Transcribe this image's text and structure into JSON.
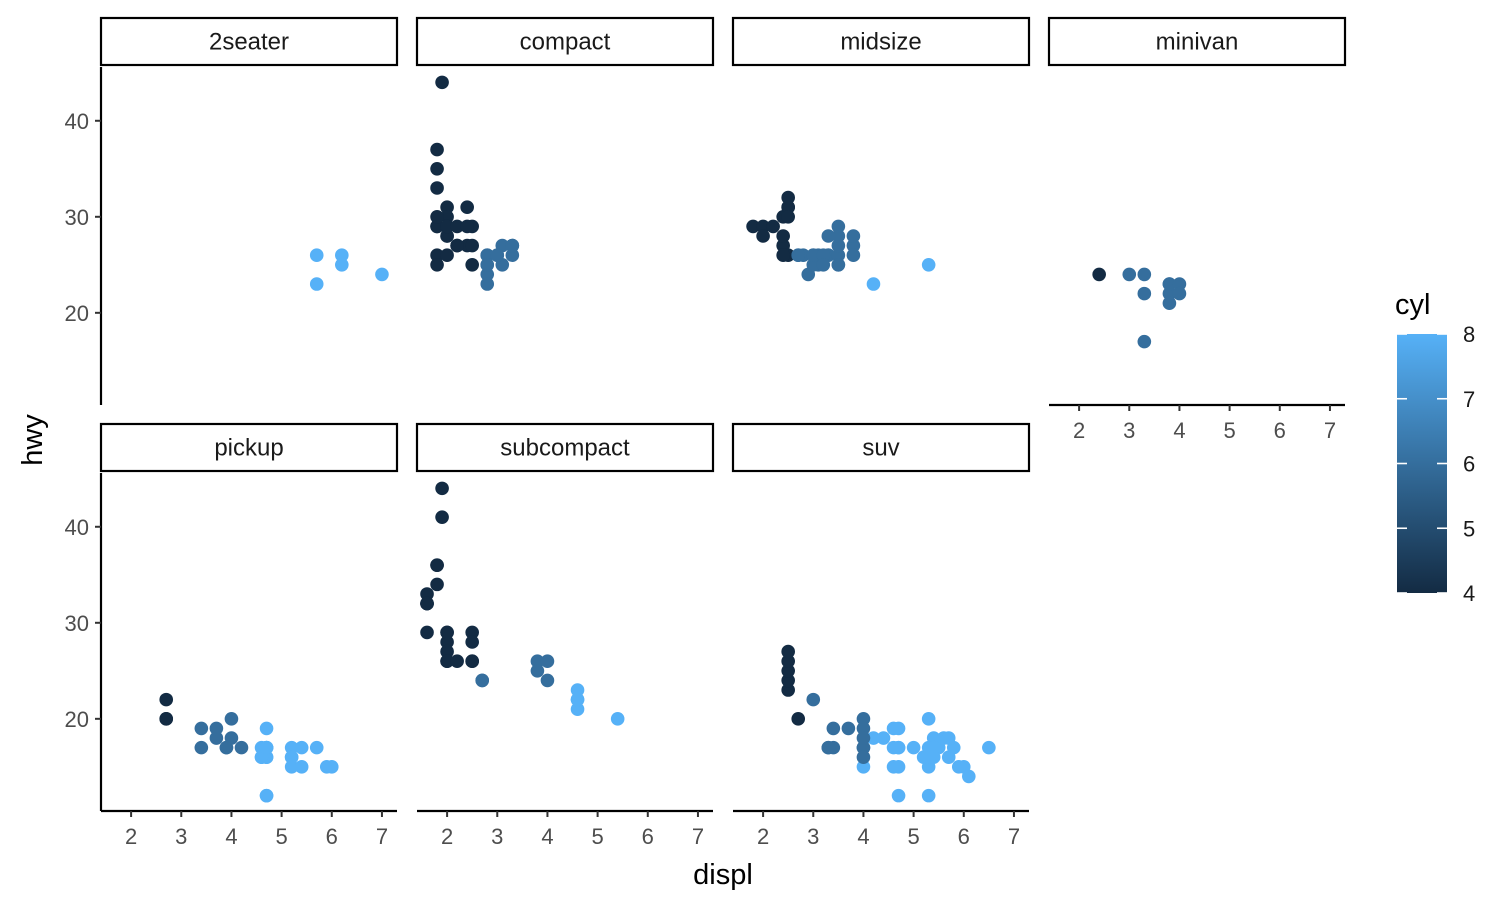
{
  "chart_data": {
    "type": "scatter",
    "facet_by": "class",
    "xlabel": "displ",
    "ylabel": "hwy",
    "xlim": [
      1.4,
      7.3
    ],
    "ylim": [
      10.4,
      45.6
    ],
    "x_ticks": [
      2,
      3,
      4,
      5,
      6,
      7
    ],
    "y_ticks": [
      20,
      30,
      40
    ],
    "grid": false,
    "color_scale": {
      "title": "cyl",
      "min": 4,
      "max": 8,
      "ticks": [
        4,
        5,
        6,
        7,
        8
      ],
      "low_color": "#132B43",
      "high_color": "#56B1F7",
      "legend_position": "right"
    },
    "facets": [
      {
        "name": "2seater",
        "points": [
          [
            5.7,
            26,
            8
          ],
          [
            5.7,
            23,
            8
          ],
          [
            6.2,
            26,
            8
          ],
          [
            6.2,
            25,
            8
          ],
          [
            7.0,
            24,
            8
          ]
        ]
      },
      {
        "name": "compact",
        "points": [
          [
            1.8,
            29,
            4
          ],
          [
            1.8,
            29,
            4
          ],
          [
            2.0,
            31,
            4
          ],
          [
            2.0,
            30,
            4
          ],
          [
            2.8,
            26,
            6
          ],
          [
            2.8,
            26,
            6
          ],
          [
            3.1,
            27,
            6
          ],
          [
            1.8,
            26,
            4
          ],
          [
            1.8,
            25,
            4
          ],
          [
            2.0,
            28,
            4
          ],
          [
            2.0,
            28,
            4
          ],
          [
            2.8,
            24,
            6
          ],
          [
            2.8,
            25,
            6
          ],
          [
            3.1,
            25,
            6
          ],
          [
            1.8,
            30,
            4
          ],
          [
            1.8,
            33,
            4
          ],
          [
            1.8,
            35,
            4
          ],
          [
            1.8,
            37,
            4
          ],
          [
            1.9,
            44,
            4
          ],
          [
            2.0,
            29,
            4
          ],
          [
            2.0,
            26,
            4
          ],
          [
            2.0,
            29,
            4
          ],
          [
            2.2,
            27,
            4
          ],
          [
            2.2,
            29,
            4
          ],
          [
            2.4,
            31,
            4
          ],
          [
            2.4,
            27,
            4
          ],
          [
            2.5,
            25,
            4
          ],
          [
            2.5,
            29,
            4
          ],
          [
            2.4,
            29,
            4
          ],
          [
            3.0,
            26,
            6
          ],
          [
            3.3,
            26,
            6
          ],
          [
            3.3,
            27,
            6
          ],
          [
            2.8,
            23,
            6
          ],
          [
            3.0,
            26,
            6
          ],
          [
            3.3,
            27,
            6
          ],
          [
            2.2,
            27,
            4
          ],
          [
            2.5,
            27,
            4
          ],
          [
            2.8,
            25,
            6
          ]
        ]
      },
      {
        "name": "midsize",
        "points": [
          [
            1.8,
            29,
            4
          ],
          [
            2.0,
            29,
            4
          ],
          [
            2.0,
            28,
            4
          ],
          [
            2.4,
            27,
            4
          ],
          [
            2.4,
            30,
            4
          ],
          [
            2.5,
            31,
            4
          ],
          [
            2.5,
            26,
            4
          ],
          [
            2.5,
            31,
            4
          ],
          [
            2.5,
            32,
            4
          ],
          [
            2.7,
            26,
            6
          ],
          [
            2.8,
            26,
            6
          ],
          [
            2.9,
            24,
            6
          ],
          [
            3.1,
            26,
            6
          ],
          [
            3.1,
            25,
            6
          ],
          [
            3.3,
            26,
            6
          ],
          [
            3.3,
            26,
            6
          ],
          [
            3.5,
            29,
            6
          ],
          [
            3.5,
            26,
            6
          ],
          [
            3.5,
            25,
            6
          ],
          [
            3.5,
            27,
            6
          ],
          [
            3.8,
            27,
            6
          ],
          [
            3.8,
            26,
            6
          ],
          [
            3.8,
            28,
            6
          ],
          [
            3.3,
            28,
            6
          ],
          [
            3.0,
            26,
            6
          ],
          [
            3.0,
            25,
            6
          ],
          [
            3.5,
            28,
            6
          ],
          [
            3.5,
            25,
            6
          ],
          [
            3.0,
            26,
            6
          ],
          [
            2.2,
            29,
            4
          ],
          [
            2.4,
            28,
            4
          ],
          [
            2.4,
            26,
            4
          ],
          [
            2.5,
            30,
            4
          ],
          [
            2.7,
            26,
            6
          ],
          [
            3.2,
            26,
            6
          ],
          [
            3.2,
            25,
            6
          ],
          [
            4.2,
            23,
            8
          ],
          [
            5.3,
            25,
            8
          ]
        ]
      },
      {
        "name": "minivan",
        "points": [
          [
            2.4,
            24,
            4
          ],
          [
            3.0,
            24,
            6
          ],
          [
            3.3,
            22,
            6
          ],
          [
            3.3,
            24,
            6
          ],
          [
            3.3,
            17,
            6
          ],
          [
            3.8,
            22,
            6
          ],
          [
            3.8,
            21,
            6
          ],
          [
            3.8,
            23,
            6
          ],
          [
            3.8,
            23,
            6
          ],
          [
            4.0,
            23,
            6
          ],
          [
            4.0,
            22,
            6
          ]
        ]
      },
      {
        "name": "pickup",
        "points": [
          [
            2.7,
            20,
            4
          ],
          [
            2.7,
            20,
            4
          ],
          [
            2.7,
            22,
            4
          ],
          [
            3.4,
            19,
            6
          ],
          [
            3.4,
            17,
            6
          ],
          [
            3.7,
            18,
            6
          ],
          [
            3.7,
            19,
            6
          ],
          [
            3.9,
            17,
            6
          ],
          [
            3.9,
            17,
            6
          ],
          [
            4.0,
            20,
            6
          ],
          [
            4.0,
            18,
            6
          ],
          [
            4.2,
            17,
            6
          ],
          [
            4.7,
            17,
            8
          ],
          [
            4.7,
            16,
            8
          ],
          [
            4.7,
            19,
            8
          ],
          [
            4.7,
            12,
            8
          ],
          [
            4.7,
            17,
            8
          ],
          [
            4.6,
            16,
            8
          ],
          [
            4.6,
            17,
            8
          ],
          [
            5.2,
            17,
            8
          ],
          [
            5.2,
            16,
            8
          ],
          [
            5.2,
            15,
            8
          ],
          [
            5.4,
            15,
            8
          ],
          [
            5.4,
            17,
            8
          ],
          [
            5.7,
            17,
            8
          ],
          [
            5.9,
            15,
            8
          ],
          [
            6.0,
            15,
            8
          ],
          [
            4.7,
            17,
            8
          ],
          [
            4.7,
            16,
            8
          ],
          [
            5.2,
            16,
            8
          ],
          [
            4.6,
            16,
            8
          ],
          [
            4.7,
            12,
            8
          ],
          [
            4.7,
            17,
            8
          ]
        ]
      },
      {
        "name": "subcompact",
        "points": [
          [
            1.6,
            33,
            4
          ],
          [
            1.6,
            32,
            4
          ],
          [
            1.6,
            32,
            4
          ],
          [
            1.6,
            29,
            4
          ],
          [
            1.6,
            32,
            4
          ],
          [
            1.8,
            34,
            4
          ],
          [
            1.8,
            36,
            4
          ],
          [
            1.8,
            36,
            4
          ],
          [
            1.9,
            44,
            4
          ],
          [
            1.9,
            41,
            4
          ],
          [
            2.0,
            29,
            4
          ],
          [
            2.0,
            26,
            4
          ],
          [
            2.0,
            28,
            4
          ],
          [
            2.0,
            27,
            4
          ],
          [
            2.0,
            26,
            4
          ],
          [
            2.2,
            26,
            4
          ],
          [
            2.5,
            29,
            4
          ],
          [
            2.5,
            28,
            4
          ],
          [
            2.5,
            26,
            4
          ],
          [
            2.7,
            24,
            6
          ],
          [
            3.8,
            26,
            6
          ],
          [
            3.8,
            25,
            6
          ],
          [
            4.0,
            26,
            6
          ],
          [
            4.0,
            24,
            6
          ],
          [
            4.6,
            21,
            8
          ],
          [
            4.6,
            22,
            8
          ],
          [
            4.6,
            23,
            8
          ],
          [
            4.6,
            22,
            8
          ],
          [
            5.4,
            20,
            8
          ],
          [
            2.0,
            29,
            4
          ],
          [
            2.5,
            26,
            4
          ],
          [
            2.7,
            24,
            6
          ]
        ]
      },
      {
        "name": "suv",
        "points": [
          [
            2.5,
            23,
            4
          ],
          [
            2.5,
            24,
            4
          ],
          [
            2.5,
            25,
            4
          ],
          [
            2.5,
            26,
            4
          ],
          [
            2.5,
            27,
            4
          ],
          [
            2.7,
            20,
            4
          ],
          [
            3.0,
            22,
            6
          ],
          [
            3.3,
            17,
            6
          ],
          [
            3.4,
            17,
            6
          ],
          [
            3.4,
            19,
            6
          ],
          [
            3.7,
            19,
            6
          ],
          [
            4.0,
            17,
            6
          ],
          [
            4.0,
            20,
            6
          ],
          [
            4.0,
            19,
            6
          ],
          [
            4.2,
            18,
            8
          ],
          [
            4.4,
            18,
            8
          ],
          [
            4.6,
            19,
            8
          ],
          [
            4.7,
            17,
            8
          ],
          [
            4.7,
            19,
            8
          ],
          [
            4.7,
            12,
            8
          ],
          [
            4.6,
            15,
            8
          ],
          [
            4.6,
            17,
            8
          ],
          [
            4.7,
            15,
            8
          ],
          [
            4.0,
            15,
            8
          ],
          [
            4.7,
            17,
            8
          ],
          [
            5.0,
            17,
            8
          ],
          [
            5.2,
            16,
            8
          ],
          [
            5.3,
            20,
            8
          ],
          [
            5.3,
            15,
            8
          ],
          [
            5.3,
            16,
            8
          ],
          [
            5.4,
            18,
            8
          ],
          [
            5.4,
            17,
            8
          ],
          [
            5.5,
            17,
            8
          ],
          [
            5.6,
            18,
            8
          ],
          [
            5.7,
            18,
            8
          ],
          [
            5.9,
            15,
            8
          ],
          [
            6.0,
            15,
            8
          ],
          [
            6.1,
            14,
            8
          ],
          [
            6.5,
            17,
            8
          ],
          [
            5.3,
            12,
            8
          ],
          [
            5.3,
            17,
            8
          ],
          [
            5.4,
            16,
            8
          ],
          [
            5.7,
            16,
            8
          ],
          [
            5.8,
            17,
            8
          ],
          [
            4.0,
            17,
            6
          ],
          [
            4.0,
            16,
            6
          ],
          [
            4.0,
            18,
            6
          ],
          [
            3.3,
            17,
            6
          ],
          [
            5.4,
            17,
            8
          ]
        ]
      }
    ]
  }
}
